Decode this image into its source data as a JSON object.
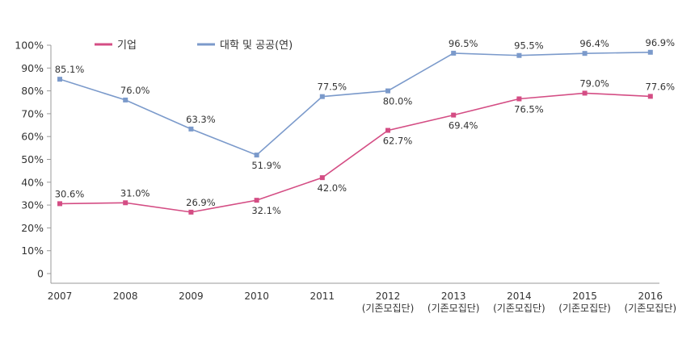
{
  "chart_data": {
    "type": "line",
    "title": "",
    "xlabel": "",
    "ylabel": "",
    "categories": [
      "2007",
      "2008",
      "2009",
      "2010",
      "2011",
      "2012",
      "2013",
      "2014",
      "2015",
      "2016"
    ],
    "category_sublabels": [
      "",
      "",
      "",
      "",
      "",
      "(기존모집단)",
      "(기존모집단)",
      "(기존모집단)",
      "(기존모집단)",
      "(기존모집단)"
    ],
    "ylim": [
      0,
      100
    ],
    "yticks": [
      "0",
      "10%",
      "20%",
      "30%",
      "40%",
      "50%",
      "60%",
      "70%",
      "80%",
      "90%",
      "100%"
    ],
    "grid": false,
    "legend_position": "top",
    "series": [
      {
        "name": "기업",
        "color": "#d44d84",
        "values": [
          30.6,
          31.0,
          26.9,
          32.1,
          42.0,
          62.7,
          69.4,
          76.5,
          79.0,
          77.6
        ],
        "labels": [
          "30.6%",
          "31.0%",
          "26.9%",
          "32.1%",
          "42.0%",
          "62.7%",
          "69.4%",
          "76.5%",
          "79.0%",
          "77.6%"
        ]
      },
      {
        "name": "대학 및 공공(연)",
        "color": "#7b9acb",
        "values": [
          85.1,
          76.0,
          63.3,
          51.9,
          77.5,
          80.0,
          96.5,
          95.5,
          96.4,
          96.9
        ],
        "labels": [
          "85.1%",
          "76.0%",
          "63.3%",
          "51.9%",
          "77.5%",
          "80.0%",
          "96.5%",
          "95.5%",
          "96.4%",
          "96.9%"
        ]
      }
    ]
  }
}
